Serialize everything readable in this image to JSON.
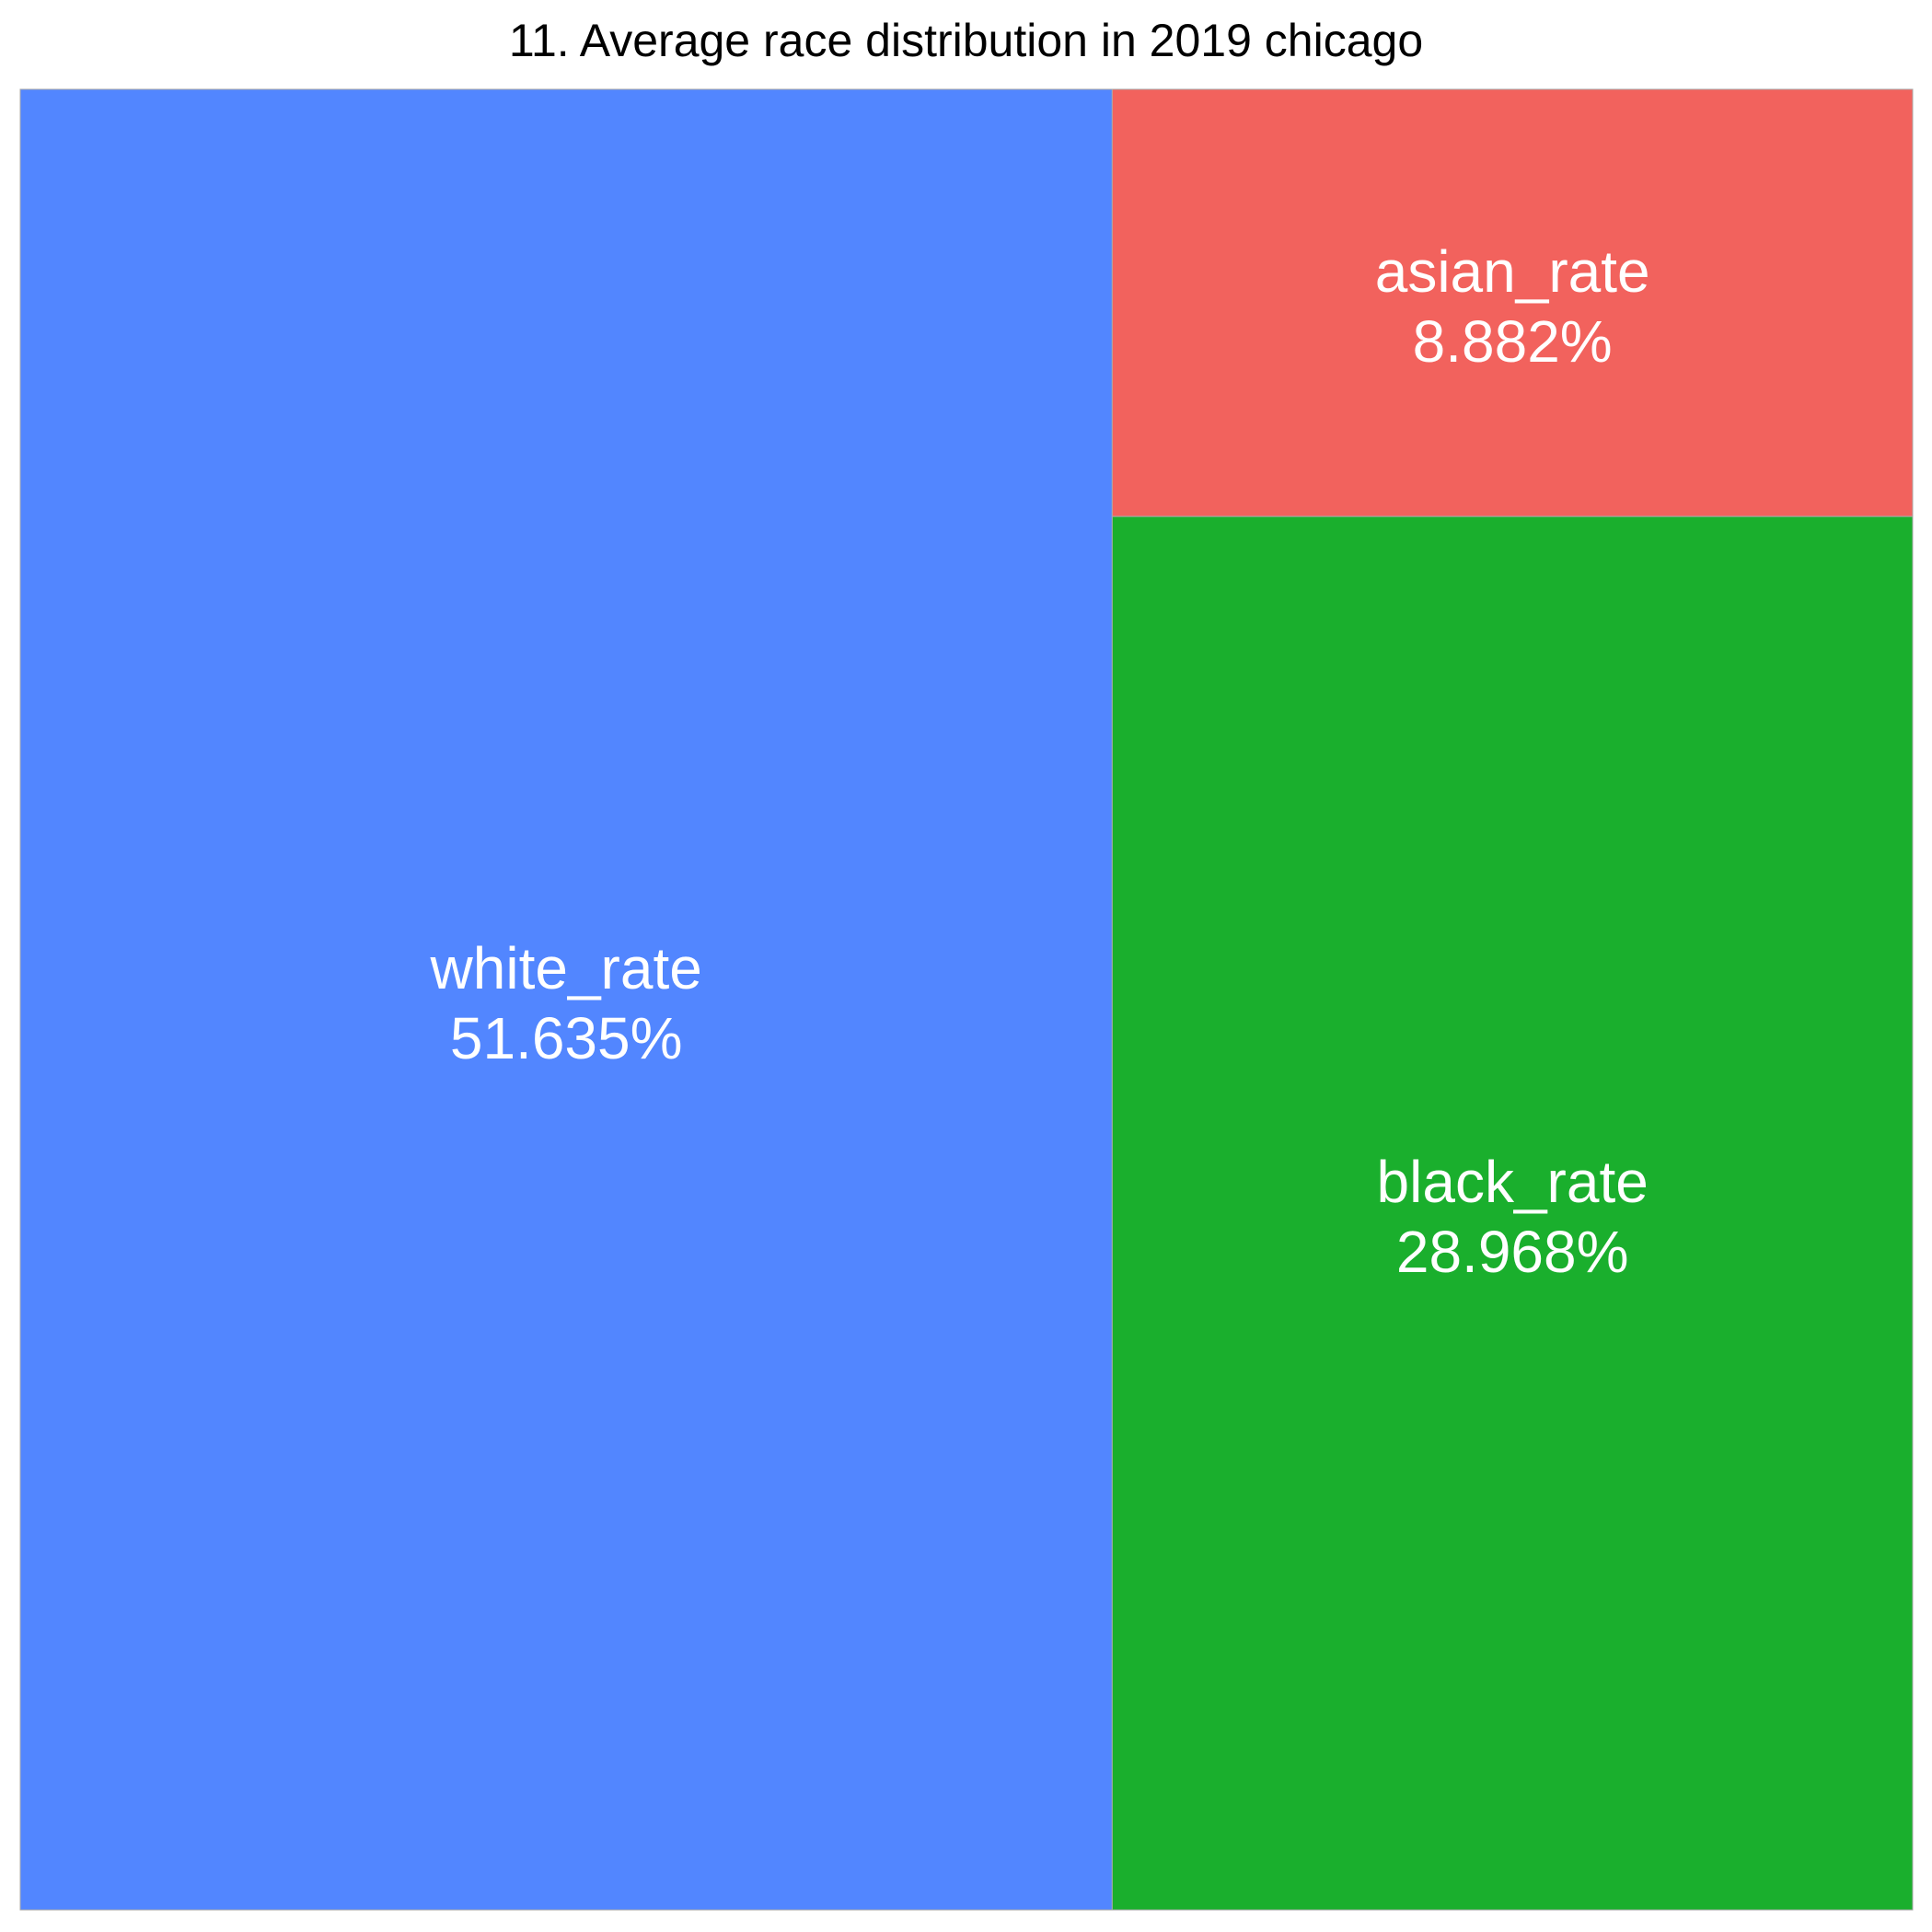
{
  "chart_data": {
    "type": "treemap",
    "title": "11. Average race distribution in 2019 chicago",
    "items": [
      {
        "label": "white_rate",
        "value": 51.635,
        "value_text": "51.635%",
        "color": "#5286FF"
      },
      {
        "label": "black_rate",
        "value": 28.968,
        "value_text": "28.968%",
        "color": "#1AAF2D"
      },
      {
        "label": "asian_rate",
        "value": 8.882,
        "value_text": "8.882%",
        "color": "#F2625D"
      }
    ]
  }
}
